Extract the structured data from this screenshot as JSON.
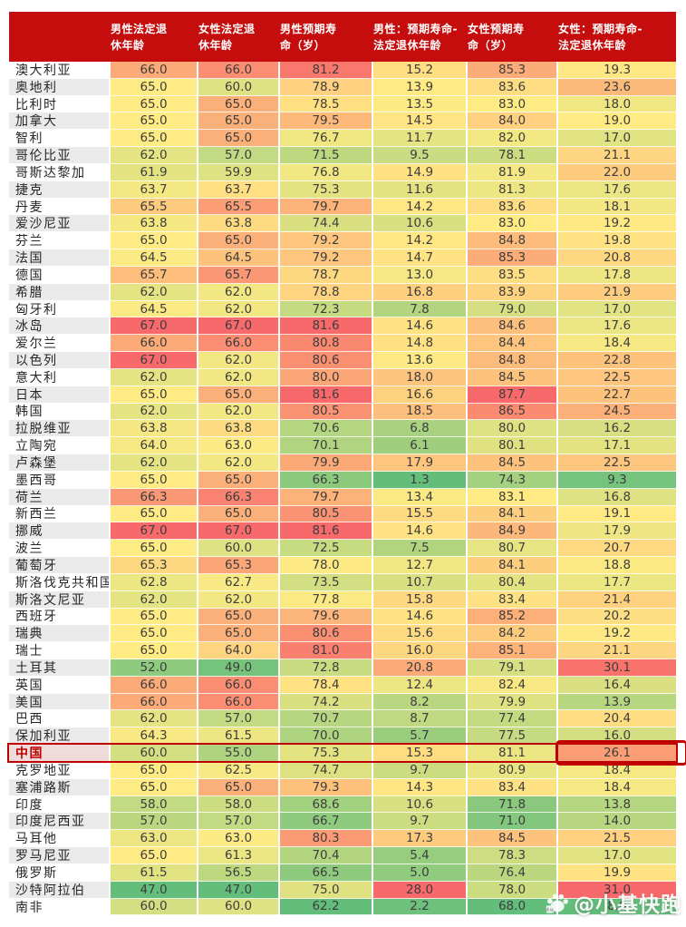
{
  "chart_data": {
    "type": "heatmap",
    "title": "",
    "row_header_label": "",
    "columns": [
      "男性法定退\n休年龄",
      "女性法定退\n休年龄",
      "男性预期寿\n命（岁）",
      "男性：预期寿命-\n法定退休年龄",
      "女性预期寿\n命（岁）",
      "女性：预期寿命-\n法定退休年龄"
    ],
    "rows": [
      {
        "country": "澳大利亚",
        "values": [
          66.0,
          66.0,
          81.2,
          15.2,
          85.3,
          19.3
        ]
      },
      {
        "country": "奥地利",
        "values": [
          65.0,
          60.0,
          78.9,
          13.9,
          83.6,
          23.6
        ]
      },
      {
        "country": "比利时",
        "values": [
          65.0,
          65.0,
          78.5,
          13.5,
          83.0,
          18.0
        ]
      },
      {
        "country": "加拿大",
        "values": [
          65.0,
          65.0,
          79.5,
          14.5,
          84.0,
          19.0
        ]
      },
      {
        "country": "智利",
        "values": [
          65.0,
          65.0,
          76.7,
          11.7,
          82.0,
          17.0
        ]
      },
      {
        "country": "哥伦比亚",
        "values": [
          62.0,
          57.0,
          71.5,
          9.5,
          78.1,
          21.1
        ]
      },
      {
        "country": "哥斯达黎加",
        "values": [
          61.9,
          59.9,
          76.8,
          14.9,
          81.9,
          22.0
        ]
      },
      {
        "country": "捷克",
        "values": [
          63.7,
          63.7,
          75.3,
          11.6,
          81.3,
          17.6
        ]
      },
      {
        "country": "丹麦",
        "values": [
          65.5,
          65.5,
          79.7,
          14.2,
          83.6,
          18.1
        ]
      },
      {
        "country": "爱沙尼亚",
        "values": [
          63.8,
          63.8,
          74.4,
          10.6,
          83.0,
          19.2
        ]
      },
      {
        "country": "芬兰",
        "values": [
          65.0,
          65.0,
          79.2,
          14.2,
          84.8,
          19.8
        ]
      },
      {
        "country": "法国",
        "values": [
          64.5,
          64.5,
          79.2,
          14.7,
          85.3,
          20.8
        ]
      },
      {
        "country": "德国",
        "values": [
          65.7,
          65.7,
          78.7,
          13.0,
          83.5,
          17.8
        ]
      },
      {
        "country": "希腊",
        "values": [
          62.0,
          62.0,
          78.8,
          16.8,
          83.9,
          21.9
        ]
      },
      {
        "country": "匈牙利",
        "values": [
          64.5,
          62.0,
          72.3,
          7.8,
          79.0,
          17.0
        ]
      },
      {
        "country": "冰岛",
        "values": [
          67.0,
          67.0,
          81.6,
          14.6,
          84.6,
          17.6
        ]
      },
      {
        "country": "爱尔兰",
        "values": [
          66.0,
          66.0,
          80.8,
          14.8,
          84.4,
          18.4
        ]
      },
      {
        "country": "以色列",
        "values": [
          67.0,
          62.0,
          80.6,
          13.6,
          84.8,
          22.8
        ]
      },
      {
        "country": "意大利",
        "values": [
          62.0,
          62.0,
          80.0,
          18.0,
          84.5,
          22.5
        ]
      },
      {
        "country": "日本",
        "values": [
          65.0,
          65.0,
          81.6,
          16.6,
          87.7,
          22.7
        ]
      },
      {
        "country": "韩国",
        "values": [
          62.0,
          62.0,
          80.5,
          18.5,
          86.5,
          24.5
        ]
      },
      {
        "country": "拉脱维亚",
        "values": [
          63.8,
          63.8,
          70.6,
          6.8,
          80.0,
          16.2
        ]
      },
      {
        "country": "立陶宛",
        "values": [
          64.0,
          63.0,
          70.1,
          6.1,
          80.1,
          17.1
        ]
      },
      {
        "country": "卢森堡",
        "values": [
          62.0,
          62.0,
          79.9,
          17.9,
          84.5,
          22.5
        ]
      },
      {
        "country": "墨西哥",
        "values": [
          65.0,
          65.0,
          66.3,
          1.3,
          74.3,
          9.3
        ]
      },
      {
        "country": "荷兰",
        "values": [
          66.3,
          66.3,
          79.7,
          13.4,
          83.1,
          16.8
        ]
      },
      {
        "country": "新西兰",
        "values": [
          65.0,
          65.0,
          80.5,
          15.5,
          84.1,
          19.1
        ]
      },
      {
        "country": "挪威",
        "values": [
          67.0,
          67.0,
          81.6,
          14.6,
          84.9,
          17.9
        ]
      },
      {
        "country": "波兰",
        "values": [
          65.0,
          60.0,
          72.5,
          7.5,
          80.7,
          20.7
        ]
      },
      {
        "country": "葡萄牙",
        "values": [
          65.3,
          65.3,
          78.0,
          12.7,
          84.1,
          18.8
        ]
      },
      {
        "country": "斯洛伐克共和国",
        "values": [
          62.8,
          62.7,
          73.5,
          10.7,
          80.4,
          17.7
        ]
      },
      {
        "country": "斯洛文尼亚",
        "values": [
          62.0,
          62.0,
          77.8,
          15.8,
          83.4,
          21.4
        ]
      },
      {
        "country": "西班牙",
        "values": [
          65.0,
          65.0,
          79.6,
          14.6,
          85.2,
          20.2
        ]
      },
      {
        "country": "瑞典",
        "values": [
          65.0,
          65.0,
          80.6,
          15.6,
          84.2,
          19.2
        ]
      },
      {
        "country": "瑞士",
        "values": [
          65.0,
          64.0,
          81.0,
          16.0,
          85.1,
          21.1
        ]
      },
      {
        "country": "土耳其",
        "values": [
          52.0,
          49.0,
          72.8,
          20.8,
          79.1,
          30.1
        ]
      },
      {
        "country": "英国",
        "values": [
          66.0,
          66.0,
          78.4,
          12.4,
          82.4,
          16.4
        ]
      },
      {
        "country": "美国",
        "values": [
          66.0,
          66.0,
          74.2,
          8.2,
          79.9,
          13.9
        ]
      },
      {
        "country": "巴西",
        "values": [
          62.0,
          57.0,
          70.7,
          8.7,
          77.4,
          20.4
        ]
      },
      {
        "country": "保加利亚",
        "values": [
          64.3,
          61.5,
          70.0,
          5.7,
          77.5,
          16.0
        ]
      },
      {
        "country": "中国",
        "values": [
          60.0,
          55.0,
          75.3,
          15.3,
          81.1,
          26.1
        ],
        "highlighted": true
      },
      {
        "country": "克罗地亚",
        "values": [
          65.0,
          62.5,
          74.7,
          9.7,
          80.9,
          18.4
        ]
      },
      {
        "country": "塞浦路斯",
        "values": [
          65.0,
          65.0,
          79.3,
          14.3,
          83.4,
          18.4
        ]
      },
      {
        "country": "印度",
        "values": [
          58.0,
          58.0,
          68.6,
          10.6,
          71.8,
          13.8
        ]
      },
      {
        "country": "印度尼西亚",
        "values": [
          57.0,
          57.0,
          66.7,
          9.7,
          71.0,
          14.0
        ]
      },
      {
        "country": "马耳他",
        "values": [
          63.0,
          63.0,
          80.3,
          17.3,
          84.5,
          21.5
        ]
      },
      {
        "country": "罗马尼亚",
        "values": [
          65.0,
          61.3,
          70.4,
          5.4,
          78.3,
          17.0
        ]
      },
      {
        "country": "俄罗斯",
        "values": [
          61.5,
          56.5,
          66.5,
          5.0,
          76.4,
          19.9
        ]
      },
      {
        "country": "沙特阿拉伯",
        "values": [
          47.0,
          47.0,
          75.0,
          28.0,
          78.0,
          31.0
        ]
      },
      {
        "country": "南非",
        "values": [
          60.0,
          60.0,
          62.2,
          2.2,
          68.0,
          8.0
        ]
      }
    ],
    "highlighted_row": "中国",
    "circled_value_index": 5,
    "color_scale": {
      "min": "#63BE7B",
      "mid": "#FFEB84",
      "max": "#F8696B",
      "midpoint": "per-column 50th percentile"
    }
  },
  "colors": {
    "header_bg": "#C60D0D",
    "header_text": "#FFFFFF",
    "row_bg": "#FFFFFF",
    "row_alt_bg": "#EAEAEA",
    "heat_min": "#63BE7B",
    "heat_mid": "#FFEB84",
    "heat_max": "#F8696B",
    "highlight_border": "#C00000",
    "highlight_text": "#C00000",
    "highlight_bg": "#F0DBDB",
    "value_text": "#3D3D3D",
    "country_text": "#262626"
  },
  "watermark": {
    "icon": "baidu-paw-icon",
    "text": "@小基快跑"
  }
}
